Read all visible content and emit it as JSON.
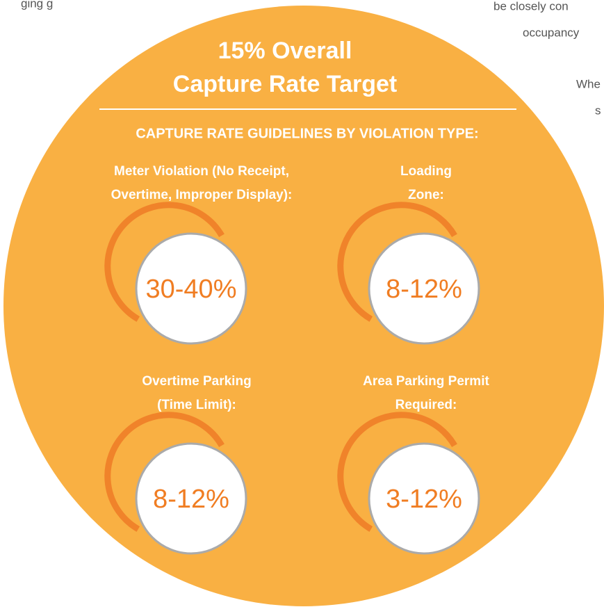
{
  "fragments": [
    "ging g",
    "be closely con",
    "occupancy",
    "Whe",
    "s"
  ],
  "title": [
    "15% Overall",
    "Capture Rate Target"
  ],
  "subtitle": "CAPTURE RATE GUIDELINES BY VIOLATION TYPE:",
  "items": [
    {
      "label": [
        "Meter Violation (No Receipt,",
        "Overtime, Improper Display):"
      ],
      "value": "30-40%"
    },
    {
      "label": [
        "Loading",
        "Zone:"
      ],
      "value": "8-12%"
    },
    {
      "label": [
        "Overtime Parking",
        "(Time Limit):"
      ],
      "value": "8-12%"
    },
    {
      "label": [
        "Area Parking Permit",
        "Required:"
      ],
      "value": "3-12%"
    }
  ]
}
